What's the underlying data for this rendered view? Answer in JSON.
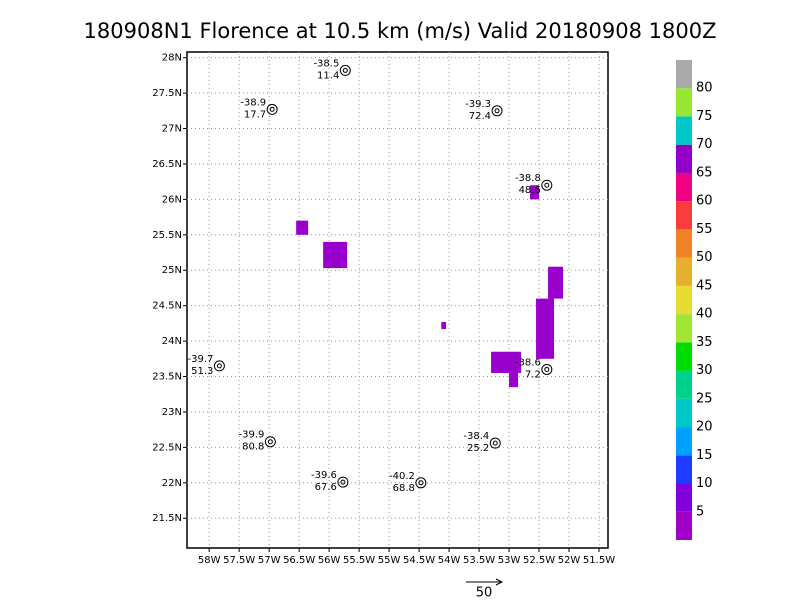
{
  "chart_data": {
    "type": "station-map",
    "title": "180908N1 Florence at 10.5 km (m/s) Valid 20180908  1800Z",
    "xlim": [
      -58.37,
      -51.35
    ],
    "ylim": [
      21.08,
      28.08
    ],
    "xticks": [
      {
        "value": -58,
        "label": "58W"
      },
      {
        "value": -57.5,
        "label": "57.5W"
      },
      {
        "value": -57,
        "label": "57W"
      },
      {
        "value": -56.5,
        "label": "56.5W"
      },
      {
        "value": -56,
        "label": "56W"
      },
      {
        "value": -55.5,
        "label": "55.5W"
      },
      {
        "value": -55,
        "label": "55W"
      },
      {
        "value": -54.5,
        "label": "54.5W"
      },
      {
        "value": -54,
        "label": "54W"
      },
      {
        "value": -53.5,
        "label": "53.5W"
      },
      {
        "value": -53,
        "label": "53W"
      },
      {
        "value": -52.5,
        "label": "52.5W"
      },
      {
        "value": -52,
        "label": "52W"
      },
      {
        "value": -51.5,
        "label": "51.5W"
      }
    ],
    "yticks": [
      {
        "value": 21.5,
        "label": "21.5N"
      },
      {
        "value": 22,
        "label": "22N"
      },
      {
        "value": 22.5,
        "label": "22.5N"
      },
      {
        "value": 23,
        "label": "23N"
      },
      {
        "value": 23.5,
        "label": "23.5N"
      },
      {
        "value": 24,
        "label": "24N"
      },
      {
        "value": 24.5,
        "label": "24.5N"
      },
      {
        "value": 25,
        "label": "25N"
      },
      {
        "value": 25.5,
        "label": "25.5N"
      },
      {
        "value": 26,
        "label": "26N"
      },
      {
        "value": 26.5,
        "label": "26.5N"
      },
      {
        "value": 27,
        "label": "27N"
      },
      {
        "value": 27.5,
        "label": "27.5N"
      },
      {
        "value": 28,
        "label": "28N"
      }
    ],
    "grid": true,
    "stations": [
      {
        "lon": -55.73,
        "lat": 27.82,
        "temp": -38.5,
        "speed": 11.4
      },
      {
        "lon": -56.95,
        "lat": 27.27,
        "temp": -38.9,
        "speed": 17.7
      },
      {
        "lon": -53.2,
        "lat": 27.25,
        "temp": -39.3,
        "speed": 72.4
      },
      {
        "lon": -52.37,
        "lat": 26.2,
        "temp": -38.8,
        "speed": 48.6
      },
      {
        "lon": -57.83,
        "lat": 23.65,
        "temp": -39.7,
        "speed": 51.3
      },
      {
        "lon": -52.37,
        "lat": 23.6,
        "temp": -38.6,
        "speed": 7.2
      },
      {
        "lon": -56.98,
        "lat": 22.58,
        "temp": -39.9,
        "speed": 80.8
      },
      {
        "lon": -53.23,
        "lat": 22.56,
        "temp": -38.4,
        "speed": 25.2
      },
      {
        "lon": -55.77,
        "lat": 22.01,
        "temp": -39.6,
        "speed": 67.6
      },
      {
        "lon": -54.47,
        "lat": 22.0,
        "temp": -40.2,
        "speed": 68.8
      }
    ],
    "region_color": "#9900cc",
    "regions": [
      {
        "lon": [
          -56.55,
          -56.35
        ],
        "lat": [
          25.5,
          25.7
        ]
      },
      {
        "lon": [
          -56.1,
          -55.7
        ],
        "lat": [
          25.03,
          25.4
        ]
      },
      {
        "lon": [
          -54.13,
          -54.05
        ],
        "lat": [
          24.17,
          24.27
        ]
      },
      {
        "lon": [
          -53.3,
          -52.8
        ],
        "lat": [
          23.55,
          23.85
        ]
      },
      {
        "lon": [
          -53.0,
          -52.85
        ],
        "lat": [
          23.35,
          23.6
        ]
      },
      {
        "lon": [
          -52.55,
          -52.25
        ],
        "lat": [
          23.75,
          24.6
        ]
      },
      {
        "lon": [
          -52.35,
          -52.1
        ],
        "lat": [
          24.6,
          25.05
        ]
      },
      {
        "lon": [
          -52.65,
          -52.5
        ],
        "lat": [
          26.0,
          26.2
        ]
      }
    ],
    "colorbar": {
      "colors": [
        "#a000c8",
        "#8200dc",
        "#1e3cff",
        "#00a0ff",
        "#00c8c8",
        "#00d28c",
        "#00dc00",
        "#a0e632",
        "#e6dc32",
        "#e6af2d",
        "#f08228",
        "#fa3c3c",
        "#f00082",
        "#9000c8",
        "#00c8c8",
        "#96e632",
        "#aaaaaa"
      ],
      "ticks": [
        5,
        10,
        15,
        20,
        25,
        30,
        35,
        40,
        45,
        50,
        55,
        60,
        65,
        70,
        75,
        80
      ]
    },
    "reference_vector": 50
  }
}
